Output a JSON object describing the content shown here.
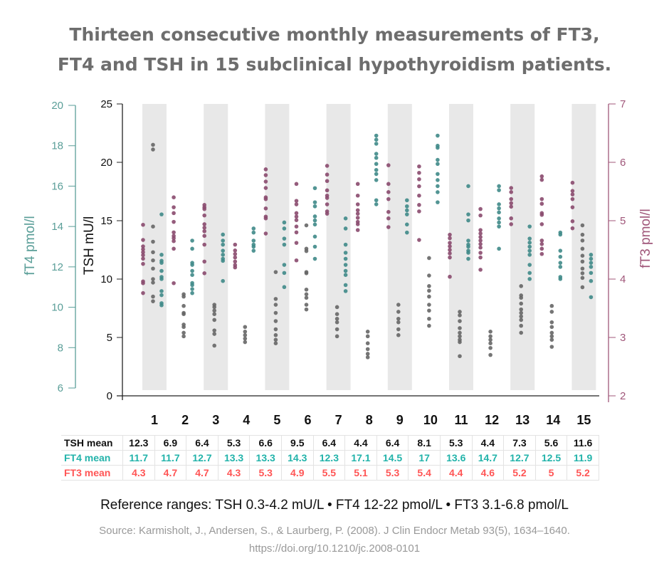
{
  "title_line1": "Thirteen consecutive monthly measurements of FT3,",
  "title_line2": "FT4 and TSH in 15 subclinical hypothyroidism patients.",
  "chart_data": {
    "type": "scatter",
    "categories": [
      "1",
      "2",
      "3",
      "4",
      "5",
      "6",
      "7",
      "8",
      "9",
      "10",
      "11",
      "12",
      "13",
      "14",
      "15"
    ],
    "axes": {
      "tsh": {
        "label": "TSH mU/l",
        "range": [
          0,
          25
        ],
        "ticks": [
          0,
          5,
          10,
          15,
          20,
          25
        ],
        "color": "#111111"
      },
      "ft4": {
        "label": "fT4 pmol/l",
        "range": [
          6,
          20
        ],
        "ticks": [
          6,
          8,
          10,
          12,
          14,
          16,
          18,
          20
        ],
        "color": "#5a9e98"
      },
      "ft3": {
        "label": "fT3 pmol/l",
        "range": [
          2,
          7
        ],
        "ticks": [
          2,
          3,
          4,
          5,
          6,
          7
        ],
        "color": "#a0577a"
      }
    },
    "band_color": "#e8e8e8",
    "grid": false,
    "series": [
      {
        "key": "ft3",
        "color": "#8a4a6e",
        "values": [
          [
            4.93,
            4.67,
            4.56,
            4.51,
            4.46,
            4.41,
            4.35,
            4.26,
            3.96,
            3.93,
            3.76
          ],
          [
            5.4,
            5.23,
            5.13,
            4.98,
            4.8,
            4.74,
            4.7,
            4.65,
            4.52,
            3.93
          ],
          [
            5.27,
            5.23,
            5.2,
            5.09,
            4.94,
            4.88,
            4.82,
            4.74,
            4.59,
            4.3,
            4.1
          ],
          [
            4.59,
            4.49,
            4.43,
            4.37,
            4.3,
            4.24,
            4.2
          ],
          [
            5.88,
            5.78,
            5.67,
            5.56,
            5.4,
            5.37,
            5.21,
            5.07,
            5.04,
            4.78
          ],
          [
            5.63,
            5.34,
            5.28,
            5.13,
            5.07,
            5.01,
            4.9,
            4.8,
            4.62,
            4.32
          ],
          [
            5.94,
            5.79,
            5.68,
            5.52,
            5.43,
            5.39,
            5.28,
            5.16,
            5.12
          ],
          [
            5.63,
            5.43,
            5.28,
            5.18,
            5.12,
            5.05,
            4.98,
            4.94,
            4.84
          ],
          [
            5.95,
            5.63,
            5.49,
            5.37,
            5.15,
            5.04,
            4.89
          ],
          [
            5.93,
            5.82,
            5.71,
            5.59,
            5.43,
            5.27,
            5.16,
            4.67
          ],
          [
            4.76,
            4.7,
            4.62,
            4.56,
            4.5,
            4.44,
            4.37,
            4.04
          ],
          [
            5.2,
            5.09,
            4.84,
            4.78,
            4.72,
            4.66,
            4.6,
            4.54,
            4.45,
            4.37,
            4.16
          ],
          [
            5.56,
            5.49,
            5.37,
            5.3,
            5.24,
            5.04,
            4.94
          ],
          [
            5.76,
            5.7,
            5.37,
            5.29,
            5.13,
            5.1,
            4.94,
            4.66,
            4.6,
            4.52,
            4.43
          ],
          [
            5.65,
            5.51,
            5.45,
            5.37,
            5.23,
            4.99,
            4.87
          ]
        ]
      },
      {
        "key": "tsh",
        "color": "#666666",
        "values": [
          [
            21.5,
            21.1,
            14.5,
            13.2,
            12.3,
            11.6,
            10.9,
            10.0,
            9.7,
            8.5,
            8.1
          ],
          [
            8.7,
            8.5,
            7.7,
            7.1,
            7.0,
            6.1,
            5.9,
            5.4,
            5.1
          ],
          [
            7.8,
            7.6,
            7.3,
            7.0,
            6.5,
            5.6,
            5.3,
            4.3
          ],
          [
            5.9,
            5.5,
            5.2,
            4.9,
            4.6
          ],
          [
            10.6,
            8.3,
            7.8,
            7.1,
            6.4,
            5.7,
            5.2,
            4.8,
            4.5
          ],
          [
            14.6,
            12.6,
            12.4,
            10.6,
            10.5,
            9.1,
            8.7,
            8.4,
            7.8,
            7.4
          ],
          [
            7.6,
            7.0,
            6.6,
            6.3,
            5.7,
            5.1
          ],
          [
            5.5,
            5.1,
            4.5,
            4.0,
            3.6,
            3.3
          ],
          [
            7.8,
            7.2,
            6.6,
            6.3,
            5.7,
            5.2
          ],
          [
            11.8,
            10.3,
            9.4,
            9.0,
            8.5,
            7.8,
            7.3,
            6.6,
            6.0
          ],
          [
            7.2,
            6.9,
            6.4,
            5.8,
            5.4,
            5.1,
            4.8,
            4.6,
            3.4
          ],
          [
            5.5,
            5.1,
            4.8,
            4.5,
            4.1,
            3.5
          ],
          [
            9.4,
            8.6,
            8.4,
            7.9,
            7.4,
            7.1,
            6.8,
            6.5,
            6.0,
            5.4
          ],
          [
            7.7,
            7.2,
            6.3,
            5.9,
            5.4,
            5.1,
            4.8,
            4.2
          ],
          [
            14.6,
            13.8,
            13.3,
            12.6,
            12.0,
            11.5,
            10.9,
            10.5,
            10.1,
            9.3
          ]
        ]
      },
      {
        "key": "ft4",
        "color": "#3f8a88",
        "values": [
          [
            14.6,
            12.6,
            12.3,
            12.2,
            11.8,
            11.5,
            11.4,
            10.8,
            10.6,
            10.2,
            10.1
          ],
          [
            13.3,
            12.9,
            12.2,
            12.1,
            11.8,
            11.6,
            11.2,
            11.1,
            10.9,
            10.7
          ],
          [
            13.6,
            13.3,
            13.1,
            12.8,
            12.6,
            12.4,
            12.3,
            11.3
          ],
          [
            13.9,
            13.7,
            13.3,
            13.1,
            13.0,
            12.8
          ],
          [
            14.2,
            13.9,
            13.4,
            13.1,
            12.1,
            11.7,
            11.0
          ],
          [
            15.9,
            15.2,
            15.0,
            14.5,
            14.3,
            14.1,
            13.5,
            13.0,
            12.4
          ],
          [
            14.4,
            13.9,
            13.1,
            12.7,
            12.4,
            12.1,
            11.8,
            11.6,
            11.1,
            10.8
          ],
          [
            18.5,
            18.3,
            18.1,
            17.6,
            17.4,
            17.1,
            16.8,
            16.6,
            16.3,
            15.3,
            15.1
          ],
          [
            15.3,
            15.0,
            14.8,
            14.6,
            14.1,
            13.7
          ],
          [
            18.5,
            18.0,
            17.9,
            17.3,
            17.1,
            16.6,
            16.3,
            16.0,
            15.7,
            15.2
          ],
          [
            16.0,
            14.6,
            14.3,
            13.3,
            13.1,
            13.0,
            12.8,
            12.7,
            12.4
          ],
          [
            16.0,
            15.8,
            15.1,
            14.9,
            14.7,
            14.4,
            14.2,
            14.0,
            12.9
          ],
          [
            14.0,
            13.4,
            13.2,
            13.0,
            12.8,
            12.6,
            12.1,
            11.7,
            11.4
          ],
          [
            13.7,
            13.6,
            12.8,
            12.5,
            12.2,
            12.0,
            11.5,
            11.4
          ],
          [
            12.6,
            12.4,
            12.2,
            12.0,
            11.7,
            11.3,
            10.5
          ]
        ]
      }
    ]
  },
  "table": {
    "rows": [
      {
        "label": "TSH mean",
        "values": [
          "12.3",
          "6.9",
          "6.4",
          "5.3",
          "6.6",
          "9.5",
          "6.4",
          "4.4",
          "6.4",
          "8.1",
          "5.3",
          "4.4",
          "7.3",
          "5.6",
          "11.6"
        ]
      },
      {
        "label": "FT4 mean",
        "values": [
          "11.7",
          "11.7",
          "12.7",
          "13.3",
          "13.3",
          "14.3",
          "12.3",
          "17.1",
          "14.5",
          "17",
          "13.6",
          "14.7",
          "12.7",
          "12.5",
          "11.9"
        ]
      },
      {
        "label": "FT3 mean",
        "values": [
          "4.3",
          "4.7",
          "4.7",
          "4.3",
          "5.3",
          "4.9",
          "5.5",
          "5.1",
          "5.3",
          "5.4",
          "4.4",
          "4.6",
          "5.2",
          "5",
          "5.2"
        ]
      }
    ]
  },
  "reference": "Reference ranges:  TSH 0.3-4.2 mU/L • FT4 12-22 pmol/L • FT3 3.1-6.8 pmol/L",
  "source_line1": "Source: Karmisholt, J., Andersen, S., & Laurberg, P. (2008). J Clin Endocr Metab 93(5), 1634–1640.",
  "source_line2": "https://doi.org/10.1210/jc.2008-0101"
}
